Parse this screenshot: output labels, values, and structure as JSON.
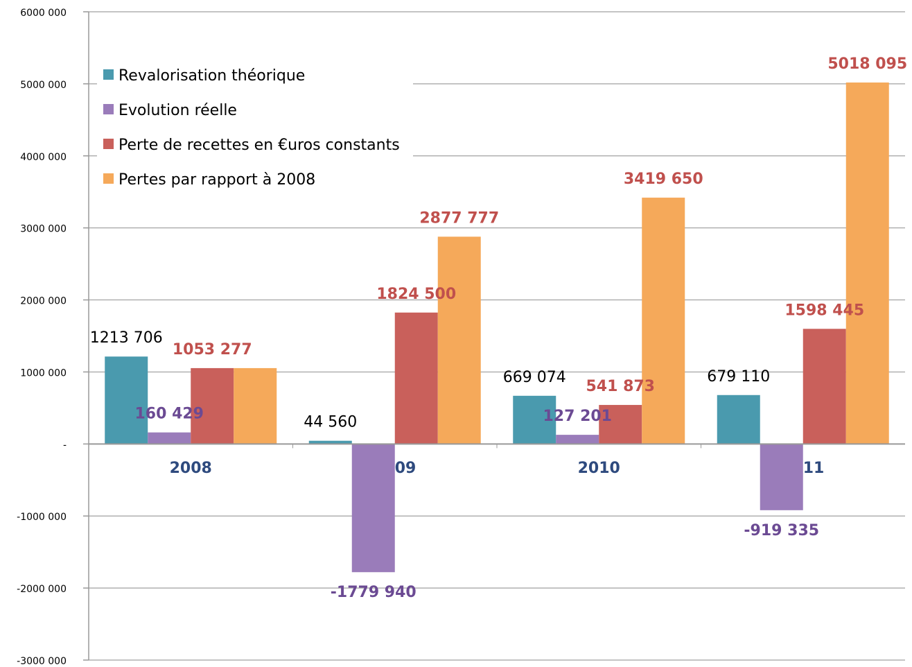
{
  "chart_data": {
    "type": "bar",
    "categories": [
      "2008",
      "2009",
      "2010",
      "2011"
    ],
    "series": [
      {
        "name": "Revalorisation théorique",
        "color": "#4a9aae",
        "label_color": "#000000",
        "label_bold": false,
        "values": [
          1213706,
          44560,
          669074,
          679110
        ],
        "value_labels": [
          "1213 706",
          "44 560",
          "669 074",
          "679 110"
        ]
      },
      {
        "name": "Evolution réelle",
        "color": "#9a7cba",
        "label_color": "#6b4a93",
        "label_bold": true,
        "values": [
          160429,
          -1779940,
          127201,
          -919335
        ],
        "value_labels": [
          "160 429",
          "-1779 940",
          "127 201",
          "-919 335"
        ]
      },
      {
        "name": "Perte de recettes en €uros constants",
        "color": "#c9605b",
        "label_color": "#c0504d",
        "label_bold": true,
        "values": [
          1053277,
          1824500,
          541873,
          1598445
        ],
        "value_labels": [
          "1053 277",
          "1824 500",
          "541 873",
          "1598 445"
        ]
      },
      {
        "name": "Pertes par rapport à 2008",
        "color": "#f5a95a",
        "label_color": "#c0504d",
        "label_bold": true,
        "values": [
          1053277,
          2877777,
          3419650,
          5018095
        ],
        "value_labels": [
          null,
          "2877 777",
          "3419 650",
          "5018 095"
        ]
      }
    ],
    "ylim": [
      -3000000,
      6000000
    ],
    "yticks": [
      {
        "value": -3000000,
        "label": "-3000 000"
      },
      {
        "value": -2000000,
        "label": "-2000 000"
      },
      {
        "value": -1000000,
        "label": "-1000 000"
      },
      {
        "value": 0,
        "label": "-"
      },
      {
        "value": 1000000,
        "label": "1000 000"
      },
      {
        "value": 2000000,
        "label": "2000 000"
      },
      {
        "value": 3000000,
        "label": "3000 000"
      },
      {
        "value": 4000000,
        "label": "4000 000"
      },
      {
        "value": 5000000,
        "label": "5000 000"
      },
      {
        "value": 6000000,
        "label": "6000 000"
      }
    ],
    "grid": true,
    "legend": "upper left"
  }
}
